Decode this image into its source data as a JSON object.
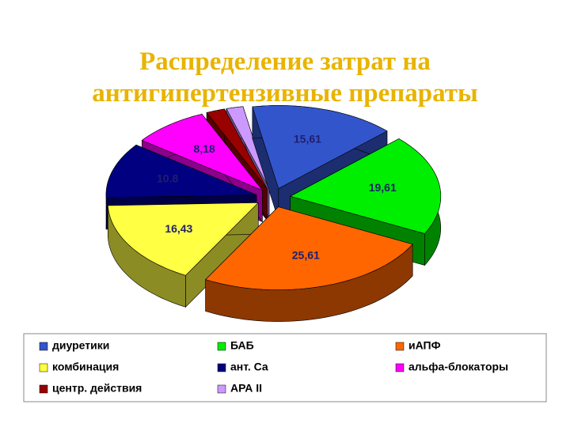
{
  "chart_data": {
    "type": "pie",
    "title": "Распределение затрат на антигипертензивные препараты",
    "categories": [
      "диуретики",
      "БАБ",
      "иАПФ",
      "комбинация",
      "ант. Са",
      "альфа-блокаторы",
      "центр. действия",
      "АРА II"
    ],
    "values": [
      15.61,
      19.61,
      25.61,
      16.43,
      10.8,
      8.18,
      2.0,
      1.8
    ],
    "value_labels": [
      "15,61",
      "19,61",
      "25,61",
      "16,43",
      "10.8",
      "8,18",
      null,
      null
    ],
    "colors": [
      "#3355cc",
      "#00ee00",
      "#ff6600",
      "#ffff44",
      "#000080",
      "#ff00ff",
      "#990000",
      "#cc99ff"
    ],
    "legend": "bottom"
  }
}
